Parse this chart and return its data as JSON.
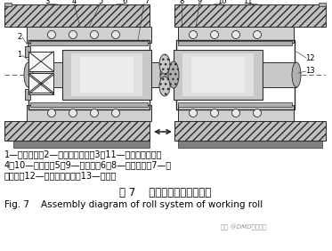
{
  "title_cn": "图 7    工作辊辊系装配示意图",
  "title_en": "Fig. 7    Assembly diagram of roll system of working roll",
  "watermark": "知乎 @DMD轧机轴承",
  "caption_lines": [
    "1—推力轴承；2—工作侧轴承座；3，11—轴向锁定装置；",
    "4，10—液压缸；5，9—平衡块；6，8—轧机牌坊；7—径",
    "向轴承；12—传动侧轴承座；13—工作辊"
  ],
  "bg_color": "#ffffff",
  "caption_fontsize": 7.0,
  "title_cn_fontsize": 8.5,
  "title_en_fontsize": 7.5
}
